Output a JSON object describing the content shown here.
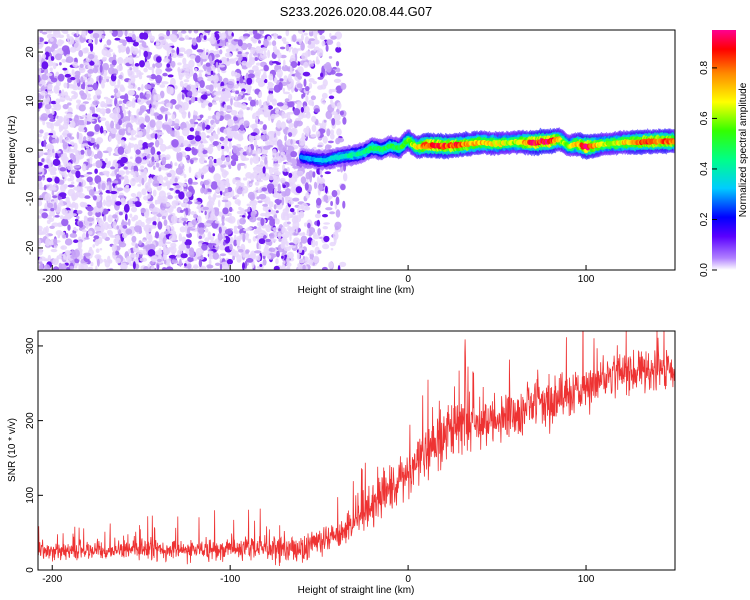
{
  "title": "S233.2026.020.08.44.G07",
  "chart_data": [
    {
      "type": "heatmap",
      "xlabel": "Height of straight line (km)",
      "ylabel": "Frequency (Hz)",
      "xlim": [
        -208,
        150
      ],
      "ylim": [
        -24.5,
        24.5
      ],
      "xticks": [
        -200,
        -100,
        0,
        100
      ],
      "yticks": [
        -20,
        -10,
        0,
        10,
        20
      ],
      "colorbar": {
        "label": "Normalized spectral amplitude",
        "range": [
          0,
          0.95
        ],
        "ticks": [
          0.0,
          0.2,
          0.4,
          0.6,
          0.8
        ]
      },
      "noise_region_x": [
        -208,
        -35
      ],
      "ridge": {
        "x": [
          -60,
          -55,
          -50,
          -45,
          -40,
          -35,
          -30,
          -25,
          -20,
          -15,
          -10,
          -5,
          0,
          5,
          10,
          20,
          30,
          40,
          50,
          60,
          70,
          80,
          85,
          90,
          95,
          100,
          110,
          120,
          130,
          140,
          150
        ],
        "freq": [
          -1.5,
          -1.8,
          -2.0,
          -2.0,
          -1.5,
          -1.2,
          -1.0,
          -0.5,
          0.5,
          0.0,
          0.8,
          0.3,
          2.0,
          0.5,
          1.0,
          0.8,
          1.0,
          1.5,
          1.3,
          1.6,
          1.5,
          1.8,
          2.2,
          0.8,
          1.2,
          0.6,
          1.2,
          1.5,
          1.6,
          1.8,
          1.8
        ],
        "amplitude": [
          0.3,
          0.3,
          0.35,
          0.35,
          0.4,
          0.4,
          0.45,
          0.45,
          0.5,
          0.5,
          0.5,
          0.55,
          0.6,
          0.7,
          0.9,
          0.9,
          0.85,
          0.75,
          0.7,
          0.65,
          0.9,
          0.95,
          0.7,
          0.6,
          0.75,
          0.95,
          0.65,
          0.7,
          0.85,
          0.85,
          0.85
        ]
      }
    },
    {
      "type": "line",
      "xlabel": "Height of straight line (km)",
      "ylabel": "SNR (10 * v/v)",
      "xlim": [
        -208,
        150
      ],
      "ylim": [
        0,
        320
      ],
      "xticks": [
        -200,
        -100,
        0,
        100
      ],
      "yticks": [
        0,
        100,
        200,
        300
      ],
      "color": "#ee3333",
      "trend": {
        "x": [
          -208,
          -150,
          -100,
          -60,
          -40,
          -20,
          0,
          20,
          35,
          50,
          80,
          100,
          120,
          150
        ],
        "snr": [
          26,
          27,
          28,
          30,
          45,
          85,
          130,
          180,
          195,
          200,
          225,
          245,
          265,
          270
        ]
      },
      "noise_amplitude": {
        "x": [
          -208,
          -40,
          0,
          50,
          150
        ],
        "snr": [
          12,
          20,
          40,
          35,
          30
        ]
      }
    }
  ]
}
